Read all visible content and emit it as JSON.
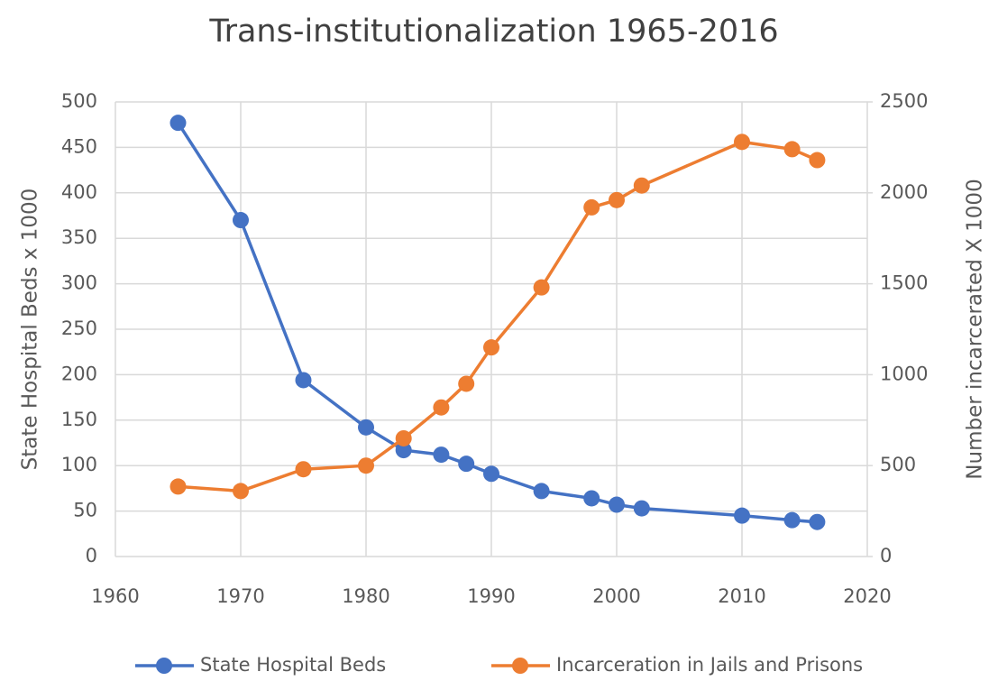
{
  "chart_data": {
    "type": "line",
    "title": "Trans-institutionalization 1965-2016",
    "ylabel": "State Hospital Beds x 1000",
    "y2label": "Number incarcerated X 1000",
    "x": [
      1965,
      1970,
      1975,
      1980,
      1983,
      1986,
      1988,
      1990,
      1994,
      1998,
      2000,
      2002,
      2010,
      2014,
      2016
    ],
    "series": [
      {
        "name": "State Hospital Beds",
        "color": "#4472c4",
        "axis": "y",
        "values": [
          477,
          370,
          194,
          142,
          117,
          112,
          102,
          91,
          72,
          64,
          57,
          53,
          45,
          40,
          38
        ]
      },
      {
        "name": "Incarceration in Jails and Prisons",
        "color": "#ed7d31",
        "axis": "y2",
        "values": [
          385,
          360,
          480,
          500,
          650,
          820,
          950,
          1150,
          1480,
          1920,
          1960,
          2040,
          2280,
          2240,
          2180
        ]
      }
    ],
    "xlim": [
      1960,
      2020
    ],
    "xticks": [
      1960,
      1970,
      1980,
      1990,
      2000,
      2010,
      2020
    ],
    "ylim": [
      0,
      500
    ],
    "yticks": [
      0,
      50,
      100,
      150,
      200,
      250,
      300,
      350,
      400,
      450,
      500
    ],
    "y2lim": [
      0,
      2500
    ],
    "y2ticks": [
      0,
      500,
      1000,
      1500,
      2000,
      2500
    ],
    "grid": true,
    "legend": "bottom"
  }
}
